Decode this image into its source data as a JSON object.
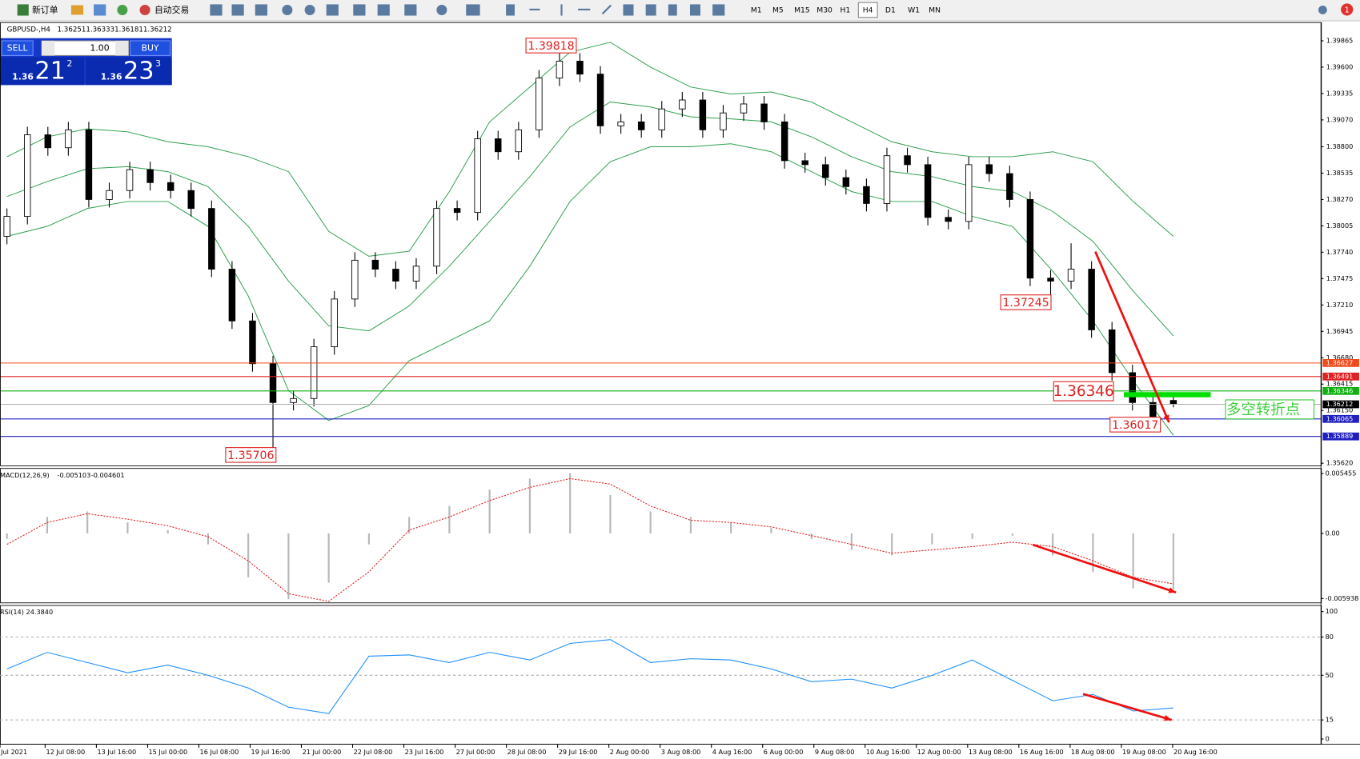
{
  "toolbar": {
    "new_order": "新订单",
    "auto_trading": "自动交易",
    "timeframes": [
      "M1",
      "M5",
      "M15",
      "M30",
      "H1",
      "H4",
      "D1",
      "W1",
      "MN"
    ],
    "active_timeframe": "H4",
    "notifications": 1
  },
  "trade_panel": {
    "sell": "SELL",
    "buy": "BUY",
    "lots": "1.00",
    "sell_price": {
      "big": "1.36",
      "pips": "21",
      "fraction": "2"
    },
    "buy_price": {
      "big": "1.36",
      "pips": "23",
      "fraction": "3"
    }
  },
  "chart": {
    "type": "candlestick",
    "symbol": "GBPUSD-,H4",
    "ylim": [
      1.35594,
      1.40048
    ],
    "yticks": [
      1.39865,
      {
        "value": 1.396,
        "label": "1.39600"
      },
      1.39335,
      {
        "value": 1.3907,
        "label": "1.39070"
      },
      {
        "value": 1.388,
        "label": "1.38800"
      },
      1.38535,
      {
        "value": 1.3827,
        "label": "1.38270"
      },
      1.38005,
      {
        "value": 1.3774,
        "label": "1.37740"
      },
      1.37475,
      {
        "value": 1.3721,
        "label": "1.37210"
      },
      1.36945,
      {
        "value": 1.3668,
        "label": "1.36680"
      },
      1.36415,
      {
        "value": 1.3615,
        "label": "1.36150"
      },
      {
        "value": 1.3562,
        "label": "1.35620"
      }
    ],
    "candles": [
      [
        1.379,
        1.3818,
        1.3782,
        1.381
      ],
      [
        1.381,
        1.39,
        1.3802,
        1.3892
      ],
      [
        1.3892,
        1.39,
        1.3871,
        1.3879
      ],
      [
        1.3879,
        1.3905,
        1.3871,
        1.3897
      ],
      [
        1.3897,
        1.3905,
        1.3819,
        1.3827
      ],
      [
        1.3827,
        1.3844,
        1.3819,
        1.3836
      ],
      [
        1.3836,
        1.3865,
        1.3828,
        1.3857
      ],
      [
        1.3857,
        1.3865,
        1.3836,
        1.3844
      ],
      [
        1.3844,
        1.3852,
        1.3828,
        1.3836
      ],
      [
        1.3836,
        1.3844,
        1.381,
        1.3818
      ],
      [
        1.3818,
        1.3826,
        1.3749,
        1.3757
      ],
      [
        1.3757,
        1.3765,
        1.3697,
        1.3705
      ],
      [
        1.3705,
        1.3713,
        1.3654,
        1.3662
      ],
      [
        1.3662,
        1.367,
        1.35706,
        1.3623
      ],
      [
        1.3623,
        1.3635,
        1.3615,
        1.3627
      ],
      [
        1.3627,
        1.3687,
        1.3619,
        1.3679
      ],
      [
        1.3679,
        1.3735,
        1.3671,
        1.3727
      ],
      [
        1.3727,
        1.3774,
        1.3719,
        1.3766
      ],
      [
        1.3766,
        1.3774,
        1.3749,
        1.3757
      ],
      [
        1.3757,
        1.3765,
        1.3737,
        1.3745
      ],
      [
        1.3745,
        1.3768,
        1.3737,
        1.376
      ],
      [
        1.376,
        1.3826,
        1.3752,
        1.3818
      ],
      [
        1.3818,
        1.3826,
        1.3806,
        1.3814
      ],
      [
        1.3814,
        1.3896,
        1.3806,
        1.3888
      ],
      [
        1.3888,
        1.3896,
        1.3867,
        1.3875
      ],
      [
        1.3875,
        1.3905,
        1.3867,
        1.3897
      ],
      [
        1.3897,
        1.3957,
        1.3889,
        1.3949
      ],
      [
        1.3949,
        1.39818,
        1.3941,
        1.3966
      ],
      [
        1.3966,
        1.3974,
        1.3945,
        1.3953
      ],
      [
        1.3953,
        1.3961,
        1.3893,
        1.3901
      ],
      [
        1.3901,
        1.3913,
        1.3893,
        1.3905
      ],
      [
        1.3905,
        1.3913,
        1.3889,
        1.3897
      ],
      [
        1.3897,
        1.3926,
        1.3889,
        1.3918
      ],
      [
        1.3918,
        1.3935,
        1.391,
        1.3927
      ],
      [
        1.3927,
        1.3935,
        1.3889,
        1.3897
      ],
      [
        1.3897,
        1.3922,
        1.3889,
        1.3914
      ],
      [
        1.3914,
        1.3931,
        1.3906,
        1.3923
      ],
      [
        1.3923,
        1.3931,
        1.3897,
        1.3905
      ],
      [
        1.3905,
        1.3913,
        1.3858,
        1.3866
      ],
      [
        1.3866,
        1.3874,
        1.3854,
        1.3862
      ],
      [
        1.3862,
        1.387,
        1.3841,
        1.3849
      ],
      [
        1.3849,
        1.3857,
        1.3832,
        1.384
      ],
      [
        1.384,
        1.3848,
        1.3815,
        1.3823
      ],
      [
        1.3823,
        1.3879,
        1.3815,
        1.3871
      ],
      [
        1.3871,
        1.3879,
        1.3854,
        1.3862
      ],
      [
        1.3862,
        1.387,
        1.3801,
        1.3809
      ],
      [
        1.3809,
        1.3817,
        1.3797,
        1.3805
      ],
      [
        1.3805,
        1.387,
        1.3797,
        1.3862
      ],
      [
        1.3862,
        1.387,
        1.3845,
        1.3853
      ],
      [
        1.3853,
        1.3861,
        1.3819,
        1.3827
      ],
      [
        1.3827,
        1.3835,
        1.374,
        1.3748
      ],
      [
        1.3748,
        1.3756,
        1.37245,
        1.3745
      ],
      [
        1.3745,
        1.3783,
        1.3737,
        1.3757
      ],
      [
        1.3757,
        1.3765,
        1.3688,
        1.3696
      ],
      [
        1.3696,
        1.3704,
        1.3645,
        1.3653
      ],
      [
        1.3653,
        1.3661,
        1.3615,
        1.3623
      ],
      [
        1.3623,
        1.3631,
        1.36017,
        1.3609
      ],
      [
        1.36251,
        1.36333,
        1.36181,
        1.36212
      ]
    ],
    "bands": {
      "color": "#2e9e4e",
      "upper": [
        1.387,
        1.389,
        1.3898,
        1.3895,
        1.3885,
        1.388,
        1.387,
        1.3855,
        1.3795,
        1.377,
        1.3775,
        1.3835,
        1.3905,
        1.394,
        1.3975,
        1.3985,
        1.396,
        1.394,
        1.3933,
        1.3935,
        1.3925,
        1.3905,
        1.3885,
        1.3875,
        1.387,
        1.387,
        1.3875,
        1.3865,
        1.3825,
        1.379
      ],
      "middle": [
        1.383,
        1.3845,
        1.3858,
        1.386,
        1.3855,
        1.384,
        1.38,
        1.3745,
        1.37,
        1.3695,
        1.372,
        1.376,
        1.3805,
        1.385,
        1.39,
        1.3925,
        1.392,
        1.391,
        1.3908,
        1.3905,
        1.389,
        1.387,
        1.3855,
        1.385,
        1.384,
        1.3835,
        1.3815,
        1.3785,
        1.3735,
        1.369
      ],
      "lower": [
        1.379,
        1.38,
        1.3818,
        1.3825,
        1.3825,
        1.38,
        1.373,
        1.3635,
        1.3605,
        1.362,
        1.3665,
        1.3685,
        1.3705,
        1.376,
        1.3825,
        1.3865,
        1.388,
        1.388,
        1.3883,
        1.3875,
        1.3855,
        1.3835,
        1.3825,
        1.3825,
        1.381,
        1.38,
        1.3755,
        1.3705,
        1.3645,
        1.359
      ]
    },
    "levels": [
      {
        "value": 1.36627,
        "color": "#f04a1a"
      },
      {
        "value": 1.36491,
        "color": "#e02020"
      },
      {
        "value": 1.36346,
        "color": "#10b010"
      },
      {
        "value": 1.36212,
        "color": "#b0b0b0",
        "box": "#000000"
      },
      {
        "value": 1.36065,
        "color": "#2020c0"
      },
      {
        "value": 1.35889,
        "color": "#2020c0"
      }
    ],
    "note": "多空转折点"
  },
  "macd": {
    "name": "MACD(12,26,9)",
    "ylim": [
      -0.006334,
      0.00593
    ],
    "yticks": [
      0.005455,
      {
        "value": 0,
        "label": "0.00"
      },
      -0.005938
    ],
    "signal_color": "#e02020",
    "histogram": [
      -0.0005,
      0.0015,
      0.002,
      0.001,
      0.0003,
      -0.001,
      -0.004,
      -0.006,
      -0.0045,
      -0.001,
      0.0015,
      0.0025,
      0.004,
      0.005,
      0.0055,
      0.0035,
      0.002,
      0.0015,
      0.001,
      0.0005,
      -0.0005,
      -0.0015,
      -0.002,
      -0.001,
      -0.0005,
      -0.0002,
      -0.002,
      -0.0035,
      -0.005,
      -0.005103
    ],
    "signal": [
      -0.001,
      0.001,
      0.0018,
      0.0013,
      0.0007,
      -0.0003,
      -0.0025,
      -0.0055,
      -0.0062,
      -0.0035,
      0.0003,
      0.0015,
      0.003,
      0.0042,
      0.005,
      0.0045,
      0.0025,
      0.0012,
      0.001,
      0.0006,
      -0.0002,
      -0.001,
      -0.0018,
      -0.0015,
      -0.0012,
      -0.0008,
      -0.0012,
      -0.0025,
      -0.004,
      -0.004601
    ]
  },
  "rsi": {
    "name": "RSI(14)",
    "current_label": "24.3840",
    "color": "#1e90ff",
    "ylim": [
      -4.08,
      104.76
    ],
    "yticks": [
      100,
      80,
      50,
      15,
      0
    ],
    "levels": [
      80,
      50,
      15
    ],
    "values": [
      55,
      68,
      60,
      52,
      58,
      50,
      40,
      25,
      20,
      65,
      66,
      60,
      68,
      62,
      75,
      78,
      60,
      63,
      62,
      55,
      45,
      47,
      40,
      50,
      62,
      46,
      30,
      35,
      22,
      24.384
    ]
  },
  "time_axis": [
    "Jul 2021",
    "12 Jul 08:00",
    "13 Jul 16:00",
    "15 Jul 00:00",
    "16 Jul 08:00",
    "19 Jul 16:00",
    "21 Jul 00:00",
    "22 Jul 08:00",
    "23 Jul 16:00",
    "27 Jul 00:00",
    "28 Jul 08:00",
    "29 Jul 16:00",
    "2 Aug 00:00",
    "3 Aug 08:00",
    "4 Aug 16:00",
    "6 Aug 00:00",
    "9 Aug 08:00",
    "10 Aug 16:00",
    "12 Aug 00:00",
    "13 Aug 08:00",
    "16 Aug 16:00",
    "18 Aug 08:00",
    "19 Aug 08:00",
    "20 Aug 16:00"
  ]
}
